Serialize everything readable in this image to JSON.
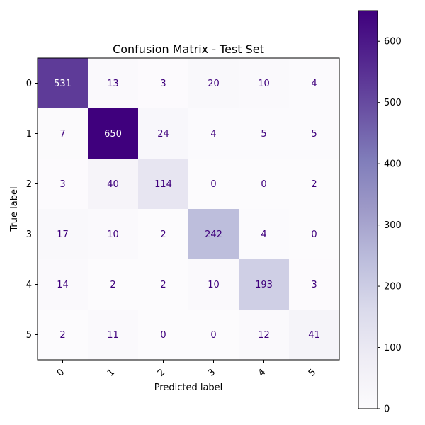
{
  "chart_data": {
    "type": "heatmap",
    "title": "Confusion Matrix - Test Set",
    "xlabel": "Predicted label",
    "ylabel": "True label",
    "x_categories": [
      "0",
      "1",
      "2",
      "3",
      "4",
      "5"
    ],
    "y_categories": [
      "0",
      "1",
      "2",
      "3",
      "4",
      "5"
    ],
    "values": [
      [
        531,
        13,
        3,
        20,
        10,
        4
      ],
      [
        7,
        650,
        24,
        4,
        5,
        5
      ],
      [
        3,
        40,
        114,
        0,
        0,
        2
      ],
      [
        17,
        10,
        2,
        242,
        4,
        0
      ],
      [
        14,
        2,
        2,
        10,
        193,
        3
      ],
      [
        2,
        11,
        0,
        0,
        12,
        41
      ]
    ],
    "colormap": "Purples",
    "colorbar": {
      "range": [
        0,
        650
      ],
      "ticks": [
        0,
        100,
        200,
        300,
        400,
        500,
        600
      ]
    },
    "x_tick_rotation_deg": 45,
    "grid": false,
    "label_colors": {
      "dark_background": "#ffffff",
      "light_background": "#3f007d"
    }
  }
}
